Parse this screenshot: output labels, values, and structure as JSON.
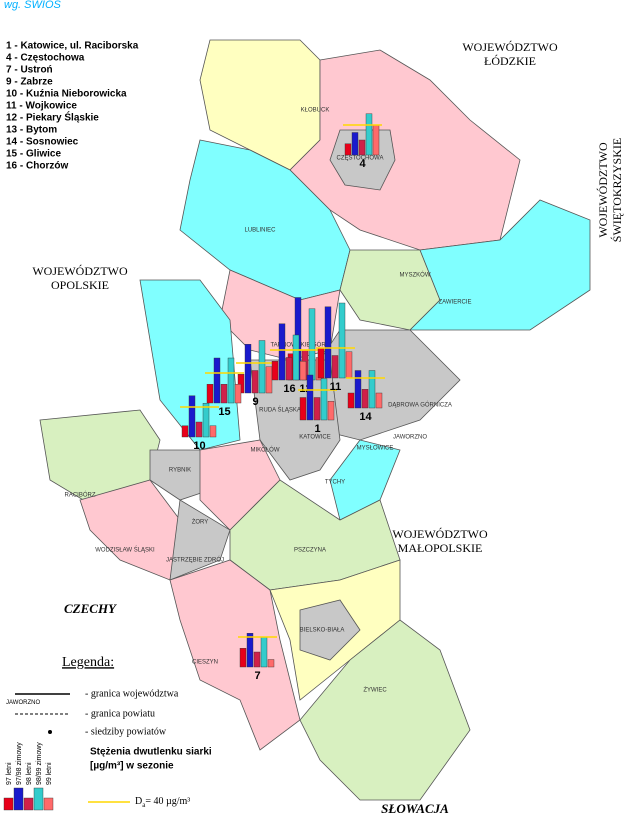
{
  "source": "wg. ŚWIOŚ",
  "station_list": [
    "1 - Katowice, ul. Raciborska",
    "4 - Częstochowa",
    "7 - Ustroń",
    "9 - Zabrze",
    "10 - Kuźnia Nieborowicka",
    "11 - Wojkowice",
    "12 - Piekary Śląskie",
    "13 - Bytom",
    "14 - Sosnowiec",
    "15 - Gliwice",
    "16 - Chorzów"
  ],
  "regions": {
    "lodzkie": [
      "WOJEWÓDZTWO",
      "ŁÓDZKIE"
    ],
    "swietokrzyskie": [
      "WOJEWÓDZTWO",
      "ŚWIĘTOKRZYSKIE"
    ],
    "opolskie": [
      "WOJEWÓDZTWO",
      "OPOLSKIE"
    ],
    "malopolskie": [
      "WOJEWÓDZTWO",
      "MAŁOPOLSKIE"
    ],
    "czechy": "CZECHY",
    "slowacja": "SŁOWACJA"
  },
  "counties": [
    "KŁOBUCK",
    "CZĘSTOCHOWA",
    "LUBLINIEC",
    "MYSZKÓW",
    "ZAWIERCIE",
    "TARNOWSKIE GÓRY",
    "DĄBROWA GÓRNICZA",
    "RUDA ŚLĄSKA",
    "KATOWICE",
    "MIKOŁÓW",
    "MYSŁOWICE",
    "JAWORZNO",
    "TYCHY",
    "RACIBÓRZ",
    "RYBNIK",
    "ŻORY",
    "WODZISŁAW ŚLĄSKI",
    "JASTRZĘBIE ZDRÓJ",
    "PSZCZYNA",
    "BIELSKO-BIAŁA",
    "CIESZYN",
    "ŻYWIEC"
  ],
  "legend": {
    "title": "Legenda:",
    "items": [
      "- granica województwa",
      "- granica powiatu",
      "- siedziby powiatów"
    ],
    "measure": [
      "Stężenia dwutlenku siarki",
      "[µg/m³] w sezonie"
    ],
    "sample_town": "JAWORZNO",
    "threshold": {
      "symbol": "D",
      "sub": "a",
      "rest": "= 40 µg/m³",
      "value": 40
    }
  },
  "series": [
    {
      "name": "97 letni",
      "color": "#e8001a"
    },
    {
      "name": "97/98 zimowy",
      "color": "#1a1acc"
    },
    {
      "name": "98 letni",
      "color": "#d0204a"
    },
    {
      "name": "98/99 zimowy",
      "color": "#33cccc"
    },
    {
      "name": "99 letni",
      "color": "#ff6a6a"
    }
  ],
  "stations": [
    {
      "number": "4",
      "values": [
        15,
        30,
        20,
        55,
        40
      ]
    },
    {
      "number": "12",
      "values": [
        35,
        110,
        40,
        95,
        30
      ]
    },
    {
      "number": "9",
      "values": [
        25,
        65,
        30,
        70,
        35
      ]
    },
    {
      "number": "15",
      "values": [
        25,
        60,
        25,
        60,
        25
      ]
    },
    {
      "number": "10",
      "values": [
        15,
        55,
        20,
        45,
        15
      ]
    },
    {
      "number": "16",
      "values": [
        25,
        75,
        30,
        60,
        25
      ]
    },
    {
      "number": "1",
      "values": [
        30,
        60,
        30,
        55,
        25
      ]
    },
    {
      "number": "11",
      "values": [
        40,
        95,
        30,
        100,
        35
      ]
    },
    {
      "number": "14",
      "values": [
        20,
        50,
        25,
        50,
        20
      ]
    },
    {
      "number": "7",
      "values": [
        25,
        45,
        20,
        40,
        10
      ]
    }
  ]
}
